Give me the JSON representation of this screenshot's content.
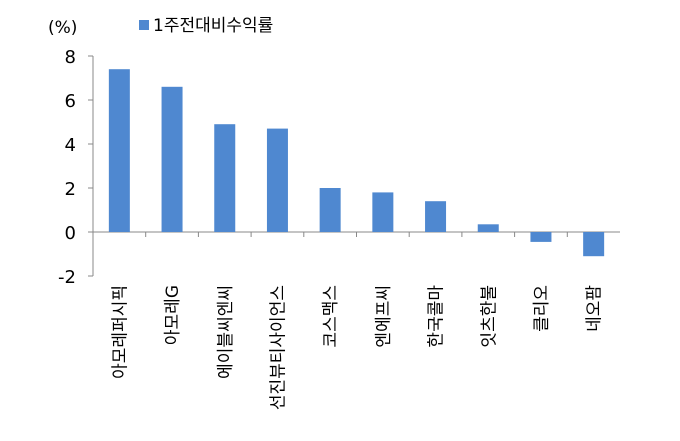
{
  "chart_data": {
    "type": "bar",
    "unit_label": "(%)",
    "legend": {
      "position": "top",
      "entries": [
        "1주전대비수익률"
      ]
    },
    "series": [
      {
        "name": "1주전대비수익률",
        "color": "#4f88d0",
        "values": [
          7.4,
          6.6,
          4.9,
          4.7,
          2.0,
          1.8,
          1.4,
          0.35,
          -0.45,
          -1.1
        ]
      }
    ],
    "categories": [
      "아모레퍼시픽",
      "아모레G",
      "에이블씨엔씨",
      "선진뷰티사이언스",
      "코스맥스",
      "엔에프씨",
      "한국콜마",
      "잇츠한불",
      "클리오",
      "네오팜"
    ],
    "yticks": [
      "8",
      "6",
      "4",
      "2",
      "0",
      "-2"
    ],
    "ylim": [
      -2,
      8
    ],
    "grid": false
  }
}
